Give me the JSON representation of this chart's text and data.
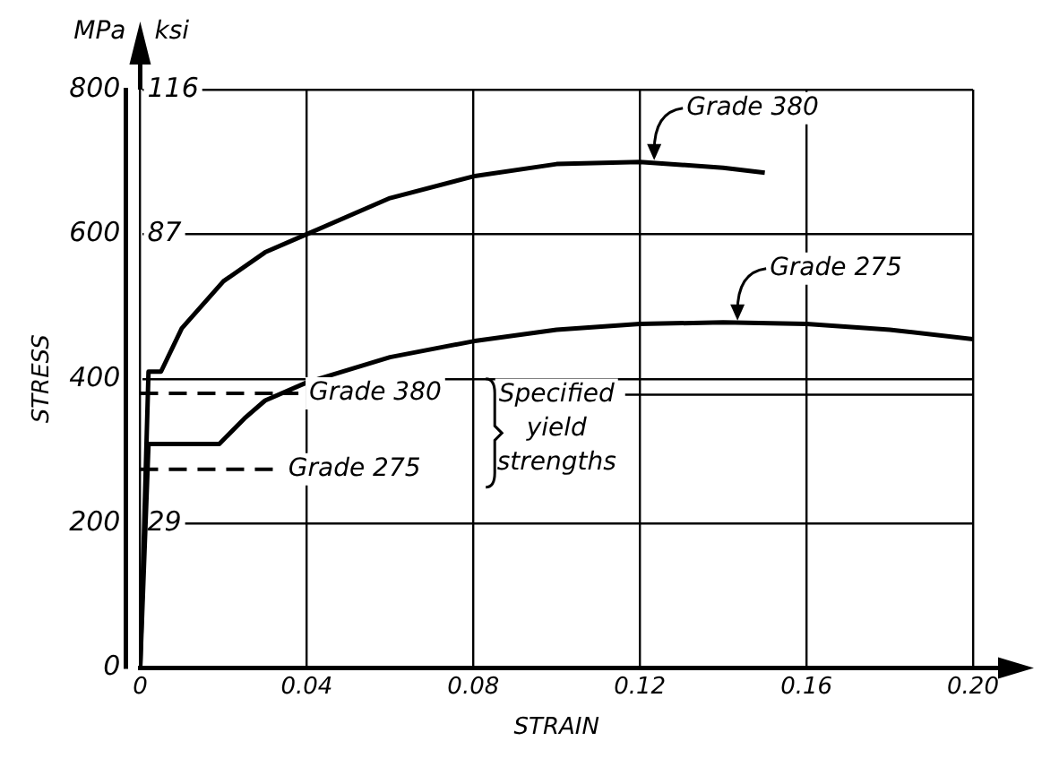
{
  "chart_data": {
    "type": "line",
    "xlabel": "STRAIN",
    "ylabel": "STRESS",
    "annotations": [
      "MPa",
      "ksi",
      "Specified yield strengths"
    ],
    "xlim": [
      0,
      0.2
    ],
    "xticks": [
      0,
      0.04,
      0.08,
      0.12,
      0.16,
      {
        "value": 0.2,
        "label": "0.20"
      }
    ],
    "ylim": [
      0,
      800
    ],
    "yticks": [
      0,
      200,
      400,
      600,
      800
    ],
    "y2lim": [
      0,
      116
    ],
    "y2ticks": [
      29,
      87,
      116
    ],
    "grid": true,
    "legend": false,
    "marker": "none",
    "line_style": "solid",
    "series": [
      {
        "name": "Grade 380",
        "color": "#000000",
        "x": [
          0,
          0.002,
          0.005,
          0.01,
          0.02,
          0.03,
          0.04,
          0.06,
          0.08,
          0.1,
          0.12,
          0.14,
          0.15
        ],
        "values": [
          0,
          410,
          410,
          470,
          535,
          575,
          600,
          650,
          680,
          697,
          700,
          692,
          685
        ]
      },
      {
        "name": "Grade 275",
        "color": "#000000",
        "x": [
          0,
          0.002,
          0.019,
          0.025,
          0.03,
          0.04,
          0.06,
          0.08,
          0.1,
          0.12,
          0.14,
          0.16,
          0.18,
          0.2
        ],
        "values": [
          0,
          310,
          310,
          345,
          370,
          395,
          430,
          452,
          468,
          476,
          478,
          476,
          468,
          455
        ]
      }
    ],
    "ref_lines": [
      {
        "axis": "y",
        "value": 380,
        "label": "Grade 380",
        "color": "#000000",
        "line_style": "dashed"
      },
      {
        "axis": "y",
        "value": 275,
        "label": "Grade 275",
        "color": "#000000",
        "line_style": "dashed"
      }
    ]
  }
}
